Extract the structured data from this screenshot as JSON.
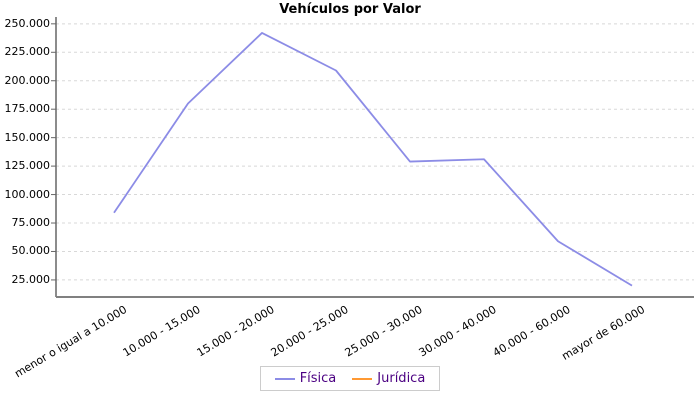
{
  "chart_data": {
    "type": "line",
    "title": "Vehículos por Valor",
    "xlabel": "",
    "ylabel": "",
    "categories": [
      "menor o igual a 10.000",
      "10.000 - 15.000",
      "15.000 - 20.000",
      "20.000 - 25.000",
      "25.000 - 30.000",
      "30.000 - 40.000",
      "40.000 - 60.000",
      "mayor de 60.000"
    ],
    "series": [
      {
        "name": "Física",
        "color": "#8c8ce6",
        "values": [
          84000,
          180000,
          242000,
          209000,
          129000,
          131000,
          59000,
          20000
        ]
      },
      {
        "name": "Jurídica",
        "color": "#ff9933",
        "values": []
      }
    ],
    "y_ticks": [
      25000,
      50000,
      75000,
      100000,
      125000,
      150000,
      175000,
      200000,
      225000,
      250000
    ],
    "y_tick_labels": [
      "25.000",
      "50.000",
      "75.000",
      "100.000",
      "125.000",
      "150.000",
      "175.000",
      "200.000",
      "225.000",
      "250.000"
    ],
    "ylim": [
      10000,
      256000
    ],
    "grid": "horizontal-dashed",
    "legend_position": "bottom"
  },
  "colors": {
    "background": "#ffffff",
    "grid": "#d8d8d8",
    "x_axis": "#808080",
    "y_axis": "#666666",
    "tick_text": "#000000",
    "legend_text": "#4b0082",
    "legend_border": "#cccccc"
  }
}
